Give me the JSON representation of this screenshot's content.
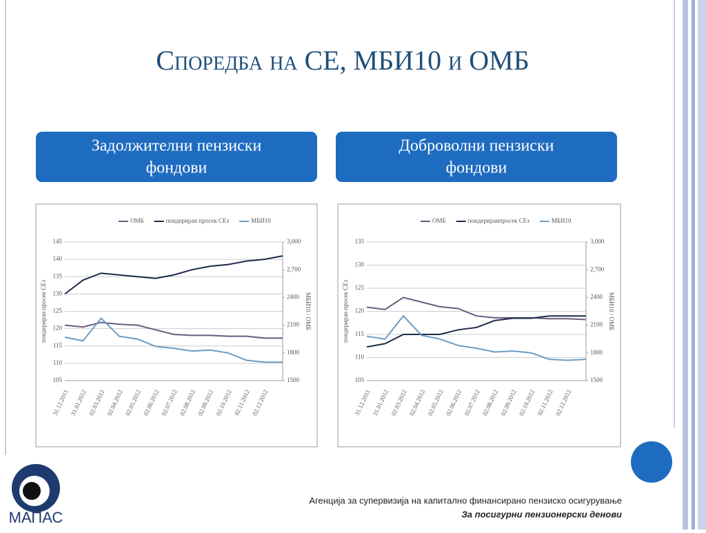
{
  "slide_title": "Споредба на СЕ, МБИ10 и ОМБ",
  "boxes": [
    {
      "lines": [
        "Задолжителни пензиски",
        "фондови"
      ]
    },
    {
      "lines": [
        "Доброволни пензиски",
        "фондови"
      ]
    }
  ],
  "footer": {
    "agency": "Агенција за супервизија на капитално финансирано пензиско осигурување",
    "motto": "За посигурни пензионерски денови",
    "logo": "МАПАС"
  },
  "chart_data": [
    {
      "type": "line",
      "ylabel": "пондериран просек СЕз",
      "y2label": "МБИ10 / ОМБ",
      "categories": [
        "31.12.2011",
        "31.01.2012",
        "02.03.2012",
        "02.04.2012",
        "02.05.2012",
        "02.06.2012",
        "02.07.2012",
        "02.08.2012",
        "02.09.2012",
        "02.10.2012",
        "02.11.2012",
        "02.12.2012",
        null
      ],
      "ylim": [
        105,
        145
      ],
      "yticks": [
        105,
        110,
        115,
        120,
        125,
        130,
        135,
        140,
        145
      ],
      "y2lim": [
        1500,
        3000
      ],
      "y2ticks": [
        {
          "value": 1500,
          "label": "1500"
        },
        {
          "value": 1800,
          "label": "1800"
        },
        {
          "value": 2100,
          "label": "2100"
        },
        {
          "value": 2400,
          "label": "2400"
        },
        {
          "value": 2700,
          "label": "2,700"
        },
        {
          "value": 3000,
          "label": "3,000"
        }
      ],
      "grid": true,
      "series": [
        {
          "name": "ОМБ",
          "color": "#6b5a7e",
          "axis": "y2",
          "values": [
            2100,
            2080,
            2130,
            2110,
            2100,
            2050,
            2000,
            1990,
            1990,
            1980,
            1980,
            1960,
            1960
          ]
        },
        {
          "name": "пондериран просек СЕз",
          "color": "#1a2a4a",
          "values": [
            130,
            134,
            136,
            135.5,
            135,
            134.5,
            135.5,
            137,
            138,
            138.5,
            139.5,
            140,
            141
          ]
        },
        {
          "name": "МБИ10",
          "color": "#6a9bc3",
          "axis": "y2",
          "values": [
            1970,
            1930,
            2175,
            1980,
            1950,
            1870,
            1850,
            1820,
            1830,
            1800,
            1720,
            1700,
            1700
          ]
        }
      ]
    },
    {
      "type": "line",
      "ylabel": "пондериран просек СЕз",
      "y2label": "МБИ10 / ОМБ",
      "categories": [
        "31.12.2011",
        "31.01.2012",
        "02.03.2012",
        "02.04.2012",
        "02.05.2012",
        "02.06.2012",
        "02.07.2012",
        "02.08.2012",
        "02.09.2012",
        "02.10.2012",
        "02.11.2012",
        "02.12.2012",
        null
      ],
      "ylim": [
        105,
        135
      ],
      "yticks": [
        105,
        110,
        115,
        120,
        125,
        130,
        135
      ],
      "y2lim": [
        1500,
        3000
      ],
      "y2ticks": [
        {
          "value": 1500,
          "label": "1500"
        },
        {
          "value": 1800,
          "label": "1800"
        },
        {
          "value": 2100,
          "label": "2100"
        },
        {
          "value": 2400,
          "label": "2400"
        },
        {
          "value": 2700,
          "label": "2,700"
        },
        {
          "value": 3000,
          "label": "3,000"
        }
      ],
      "grid": true,
      "series": [
        {
          "name": "ОМБ",
          "color": "#6b5a7e",
          "axis": "y2",
          "values": [
            2295,
            2270,
            2400,
            2350,
            2300,
            2280,
            2200,
            2180,
            2180,
            2180,
            2170,
            2170,
            2160
          ]
        },
        {
          "name": "пондериранпросек СЕз",
          "color": "#1a2a4a",
          "values": [
            112.3,
            113,
            115,
            115,
            115,
            116,
            116.5,
            118,
            118.5,
            118.5,
            119,
            119,
            119
          ]
        },
        {
          "name": "МБИ10",
          "color": "#6a9bc3",
          "axis": "y2",
          "values": [
            1980,
            1950,
            2200,
            1990,
            1950,
            1880,
            1850,
            1810,
            1820,
            1800,
            1730,
            1720,
            1730
          ]
        }
      ]
    }
  ]
}
